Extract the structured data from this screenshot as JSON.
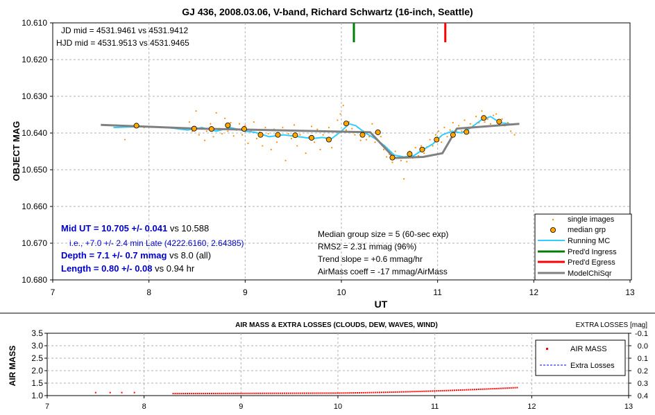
{
  "chart_data": [
    {
      "type": "scatter",
      "title": "GJ 436, 2008.03.06, V-band, Richard Schwartz (16-inch, Seattle)",
      "xlabel": "UT",
      "ylabel": "OBJECT MAG",
      "xlim": [
        7,
        13
      ],
      "ylim": [
        10.61,
        10.68
      ],
      "y_inverted": true,
      "grid": true,
      "x_ticks": [
        "7",
        "8",
        "9",
        "10",
        "11",
        "12",
        "13"
      ],
      "y_ticks": [
        "10.610",
        "10.620",
        "10.630",
        "10.640",
        "10.650",
        "10.660",
        "10.670",
        "10.680"
      ],
      "legend_position": "bottom-right",
      "legend": [
        "single images",
        "median grp",
        "Running MC",
        "Pred'd Ingress",
        "Pred'd Egress",
        "ModelChiSqr"
      ],
      "colors": {
        "single": "#ff8c00",
        "median_fill": "#ffa500",
        "running": "#33ccff",
        "ingress": "#008000",
        "egress": "#ff0000",
        "model": "#808080",
        "stats_blue": "#0000cc"
      },
      "jd_lines": [
        "JD mid = 4531.9461 vs 4531.9412",
        "HJD mid = 4531.9513 vs 4531.9465"
      ],
      "results": {
        "mid_bold": "Mid UT = 10.705 +/- 0.041",
        "mid_rest": " vs 10.588",
        "late": "i.e., +7.0 +/- 2.4 min Late (4222.6160, 2.64385)",
        "depth_bold": "Depth = 7.1 +/- 0.7 mmag",
        "depth_rest": " vs 8.0 (all)",
        "length_bold": "Length = 0.80 +/- 0.08",
        "length_rest": " vs 0.94 hr"
      },
      "info_lines": [
        "Median group size = 5 (60-sec exp)",
        "RMS2 = 2.31 mmag (96%)",
        "Trend slope = +0.6 mmag/hr",
        "AirMass coeff = -17 mmag/AirMass"
      ],
      "ingress_x": 10.13,
      "egress_x": 11.08,
      "median_grp": {
        "x": [
          7.87,
          8.47,
          8.65,
          8.82,
          8.99,
          9.16,
          9.34,
          9.52,
          9.69,
          9.87,
          10.05,
          10.22,
          10.38,
          10.53,
          10.71,
          10.84,
          10.99,
          11.16,
          11.3,
          11.48,
          11.64
        ],
        "y": [
          10.638,
          10.6388,
          10.6389,
          10.6379,
          10.6389,
          10.6405,
          10.6405,
          10.6406,
          10.6413,
          10.6418,
          10.6374,
          10.6405,
          10.6398,
          10.6467,
          10.6457,
          10.6445,
          10.6418,
          10.6405,
          10.6397,
          10.6359,
          10.6369
        ]
      },
      "single_images": {
        "x": [
          7.75,
          7.95,
          8.42,
          8.45,
          8.49,
          8.52,
          8.55,
          8.58,
          8.6,
          8.64,
          8.67,
          8.7,
          8.73,
          8.76,
          8.79,
          8.82,
          8.85,
          8.88,
          8.91,
          8.94,
          8.97,
          9.0,
          9.03,
          9.06,
          9.09,
          9.12,
          9.15,
          9.18,
          9.21,
          9.24,
          9.27,
          9.3,
          9.33,
          9.36,
          9.39,
          9.42,
          9.45,
          9.48,
          9.51,
          9.54,
          9.57,
          9.6,
          9.63,
          9.66,
          9.69,
          9.72,
          9.75,
          9.78,
          9.81,
          9.84,
          9.87,
          9.9,
          9.93,
          9.96,
          9.99,
          10.02,
          10.05,
          10.08,
          10.11,
          10.14,
          10.17,
          10.2,
          10.23,
          10.26,
          10.29,
          10.32,
          10.35,
          10.38,
          10.41,
          10.44,
          10.47,
          10.5,
          10.53,
          10.56,
          10.59,
          10.62,
          10.65,
          10.68,
          10.71,
          10.74,
          10.77,
          10.8,
          10.83,
          10.86,
          10.89,
          10.92,
          10.95,
          10.98,
          11.01,
          11.04,
          11.07,
          11.1,
          11.13,
          11.16,
          11.19,
          11.22,
          11.25,
          11.28,
          11.31,
          11.34,
          11.37,
          11.4,
          11.43,
          11.46,
          11.49,
          11.52,
          11.55,
          11.58,
          11.61,
          11.64,
          11.67,
          11.7,
          11.73,
          11.76,
          11.8
        ],
        "y": [
          10.6418,
          10.6385,
          10.637,
          10.6395,
          10.634,
          10.6405,
          10.6385,
          10.642,
          10.6395,
          10.6375,
          10.641,
          10.6345,
          10.6388,
          10.6402,
          10.636,
          10.6395,
          10.6372,
          10.6408,
          10.6392,
          10.6375,
          10.6405,
          10.638,
          10.6428,
          10.6395,
          10.637,
          10.6415,
          10.6398,
          10.6435,
          10.6385,
          10.6402,
          10.6445,
          10.639,
          10.6425,
          10.6408,
          10.6385,
          10.6475,
          10.6402,
          10.6415,
          10.6378,
          10.6435,
          10.6405,
          10.6395,
          10.6455,
          10.6412,
          10.6382,
          10.6425,
          10.639,
          10.6445,
          10.6405,
          10.6415,
          10.6385,
          10.644,
          10.6395,
          10.6365,
          10.6348,
          10.6325,
          10.6392,
          10.637,
          10.6388,
          10.6405,
          10.6385,
          10.642,
          10.6395,
          10.6418,
          10.641,
          10.6375,
          10.6425,
          10.6395,
          10.641,
          10.6445,
          10.6465,
          10.6458,
          10.648,
          10.645,
          10.6468,
          10.6475,
          10.6525,
          10.6478,
          10.645,
          10.6468,
          10.644,
          10.6462,
          10.6435,
          10.6455,
          10.6438,
          10.6418,
          10.6435,
          10.6405,
          10.6395,
          10.6425,
          10.6385,
          10.641,
          10.6392,
          10.6372,
          10.6395,
          10.638,
          10.6395,
          10.6365,
          10.6392,
          10.6375,
          10.638,
          10.6355,
          10.6372,
          10.634,
          10.637,
          10.6362,
          10.6375,
          10.6352,
          10.6348,
          10.6375,
          10.6362,
          10.638,
          10.6372,
          10.6395,
          10.6405
        ]
      },
      "running_mc": {
        "x": [
          7.63,
          7.85,
          8.0,
          8.2,
          8.4,
          8.55,
          8.7,
          8.85,
          9.0,
          9.1,
          9.25,
          9.4,
          9.55,
          9.7,
          9.8,
          9.9,
          10.0,
          10.08,
          10.15,
          10.25,
          10.35,
          10.45,
          10.55,
          10.65,
          10.75,
          10.85,
          10.95,
          11.05,
          11.15,
          11.25,
          11.35,
          11.45,
          11.55,
          11.65,
          11.75
        ],
        "y": [
          10.6385,
          10.6383,
          10.6382,
          10.6385,
          10.6392,
          10.6385,
          10.6395,
          10.6385,
          10.6395,
          10.6398,
          10.641,
          10.6405,
          10.641,
          10.6415,
          10.6412,
          10.6415,
          10.6395,
          10.6375,
          10.638,
          10.64,
          10.6415,
          10.6435,
          10.646,
          10.6465,
          10.6462,
          10.6445,
          10.643,
          10.6405,
          10.6395,
          10.64,
          10.6385,
          10.6365,
          10.6355,
          10.6372,
          10.6375
        ]
      },
      "model": {
        "x": [
          7.5,
          8.5,
          10.3,
          10.55,
          10.85,
          11.05,
          11.2,
          11.85
        ],
        "y": [
          10.6378,
          10.6388,
          10.6398,
          10.6468,
          10.6465,
          10.6455,
          10.6388,
          10.6375
        ]
      }
    },
    {
      "type": "scatter",
      "title": "AIR MASS & EXTRA LOSSES (CLOUDS, DEW, WAVES, WIND)",
      "ylabel": "AIR MASS",
      "y2label": "EXTRA LOSSES [mag]",
      "xlim": [
        7,
        13
      ],
      "ylim": [
        1.0,
        3.5
      ],
      "y2lim": [
        -0.1,
        0.4
      ],
      "y2_inverted": true,
      "grid": true,
      "x_ticks": [
        "7",
        "8",
        "9",
        "10",
        "11",
        "12",
        "13"
      ],
      "y_ticks": [
        "1.0",
        "1.5",
        "2.0",
        "2.5",
        "3.0",
        "3.5"
      ],
      "y2_ticks": [
        "-0.1",
        "0.0",
        "0.1",
        "0.2",
        "0.3",
        "0.4"
      ],
      "legend_position": "top-right",
      "legend": [
        "AIR MASS",
        "Extra Losses"
      ],
      "colors": {
        "airmass": "#ff0000",
        "extra": "#0000ff"
      },
      "airmass": {
        "x_start": 8.3,
        "x_end": 11.85,
        "y_start": 1.08,
        "y_mid_x": 10.0,
        "y_mid": 1.1,
        "y_end": 1.32,
        "early_x": [
          7.5,
          7.65,
          7.77,
          7.9
        ],
        "early_y": [
          1.12,
          1.12,
          1.12,
          1.12
        ]
      }
    }
  ]
}
